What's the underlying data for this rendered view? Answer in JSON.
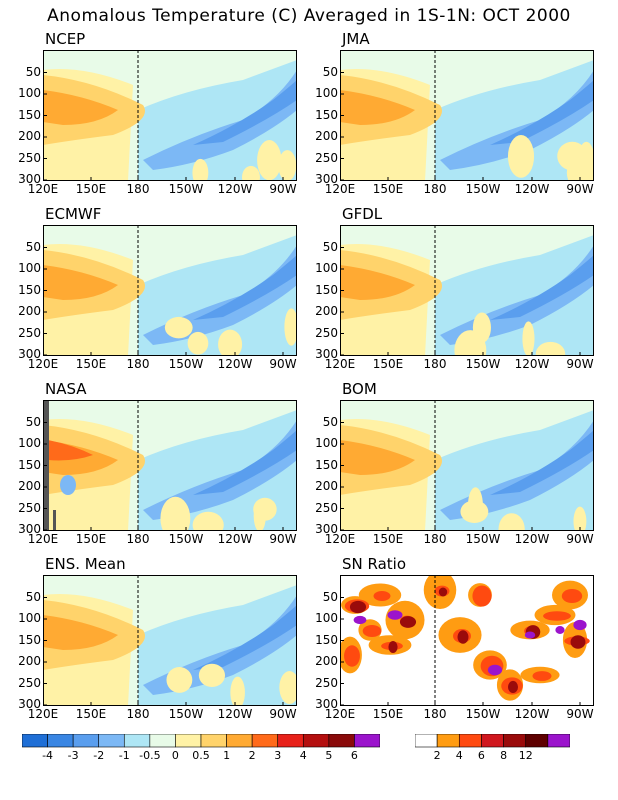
{
  "title": "Anomalous Temperature (C) Averaged in 1S-1N: OCT 2000",
  "chart_data": [
    {
      "type": "heatmap",
      "title": "NCEP",
      "x_ticks": [
        "120E",
        "150E",
        "180",
        "150W",
        "120W",
        "90W"
      ],
      "y_ticks": [
        "50",
        "100",
        "150",
        "200",
        "250",
        "300"
      ],
      "ylim": [
        300,
        0
      ],
      "xlabel": "",
      "ylabel": "",
      "dateline": "180"
    },
    {
      "type": "heatmap",
      "title": "JMA",
      "x_ticks": [
        "120E",
        "150E",
        "180",
        "150W",
        "120W",
        "90W"
      ],
      "y_ticks": [
        "50",
        "100",
        "150",
        "200",
        "250",
        "300"
      ],
      "ylim": [
        300,
        0
      ],
      "xlabel": "",
      "ylabel": "",
      "dateline": "180"
    },
    {
      "type": "heatmap",
      "title": "ECMWF",
      "x_ticks": [
        "120E",
        "150E",
        "180",
        "150W",
        "120W",
        "90W"
      ],
      "y_ticks": [
        "50",
        "100",
        "150",
        "200",
        "250",
        "300"
      ],
      "ylim": [
        300,
        0
      ],
      "xlabel": "",
      "ylabel": "",
      "dateline": "180"
    },
    {
      "type": "heatmap",
      "title": "GFDL",
      "x_ticks": [
        "120E",
        "150E",
        "180",
        "150W",
        "120W",
        "90W"
      ],
      "y_ticks": [
        "50",
        "100",
        "150",
        "200",
        "250",
        "300"
      ],
      "ylim": [
        300,
        0
      ],
      "xlabel": "",
      "ylabel": "",
      "dateline": "180"
    },
    {
      "type": "heatmap",
      "title": "NASA",
      "x_ticks": [
        "120E",
        "150E",
        "180",
        "150W",
        "120W",
        "90W"
      ],
      "y_ticks": [
        "50",
        "100",
        "150",
        "200",
        "250",
        "300"
      ],
      "ylim": [
        300,
        0
      ],
      "xlabel": "",
      "ylabel": "",
      "dateline": "180"
    },
    {
      "type": "heatmap",
      "title": "BOM",
      "x_ticks": [
        "120E",
        "150E",
        "180",
        "150W",
        "120W",
        "90W"
      ],
      "y_ticks": [
        "50",
        "100",
        "150",
        "200",
        "250",
        "300"
      ],
      "ylim": [
        300,
        0
      ],
      "xlabel": "",
      "ylabel": "",
      "dateline": "180"
    },
    {
      "type": "heatmap",
      "title": "ENS. Mean",
      "x_ticks": [
        "120E",
        "150E",
        "180",
        "150W",
        "120W",
        "90W"
      ],
      "y_ticks": [
        "50",
        "100",
        "150",
        "200",
        "250",
        "300"
      ],
      "ylim": [
        300,
        0
      ],
      "xlabel": "",
      "ylabel": "",
      "dateline": "180"
    },
    {
      "type": "heatmap",
      "title": "SN Ratio",
      "x_ticks": [
        "120E",
        "150E",
        "180",
        "150W",
        "120W",
        "90W"
      ],
      "y_ticks": [
        "50",
        "100",
        "150",
        "200",
        "250",
        "300"
      ],
      "ylim": [
        300,
        0
      ],
      "xlabel": "",
      "ylabel": "",
      "dateline": "180"
    }
  ],
  "colorbar_anomaly": {
    "labels": [
      "-4",
      "-3",
      "-2",
      "-1",
      "-0.5",
      "0",
      "0.5",
      "1",
      "2",
      "3",
      "4",
      "5",
      "6"
    ],
    "colors": [
      "#1f6fd6",
      "#3a86e3",
      "#5a9eee",
      "#7cb8f5",
      "#aee6f5",
      "#e8fbe8",
      "#fff2a6",
      "#ffd36b",
      "#ffaa33",
      "#ff6a1a",
      "#e8211a",
      "#b40f0f",
      "#8a0a0a",
      "#9b14cc"
    ]
  },
  "colorbar_snratio": {
    "labels": [
      "2",
      "4",
      "6",
      "8",
      "12"
    ],
    "colors": [
      "#ffffff",
      "#ff9c12",
      "#ff4a10",
      "#d0171e",
      "#9a0b0b",
      "#5e0000",
      "#9b14cc"
    ]
  }
}
